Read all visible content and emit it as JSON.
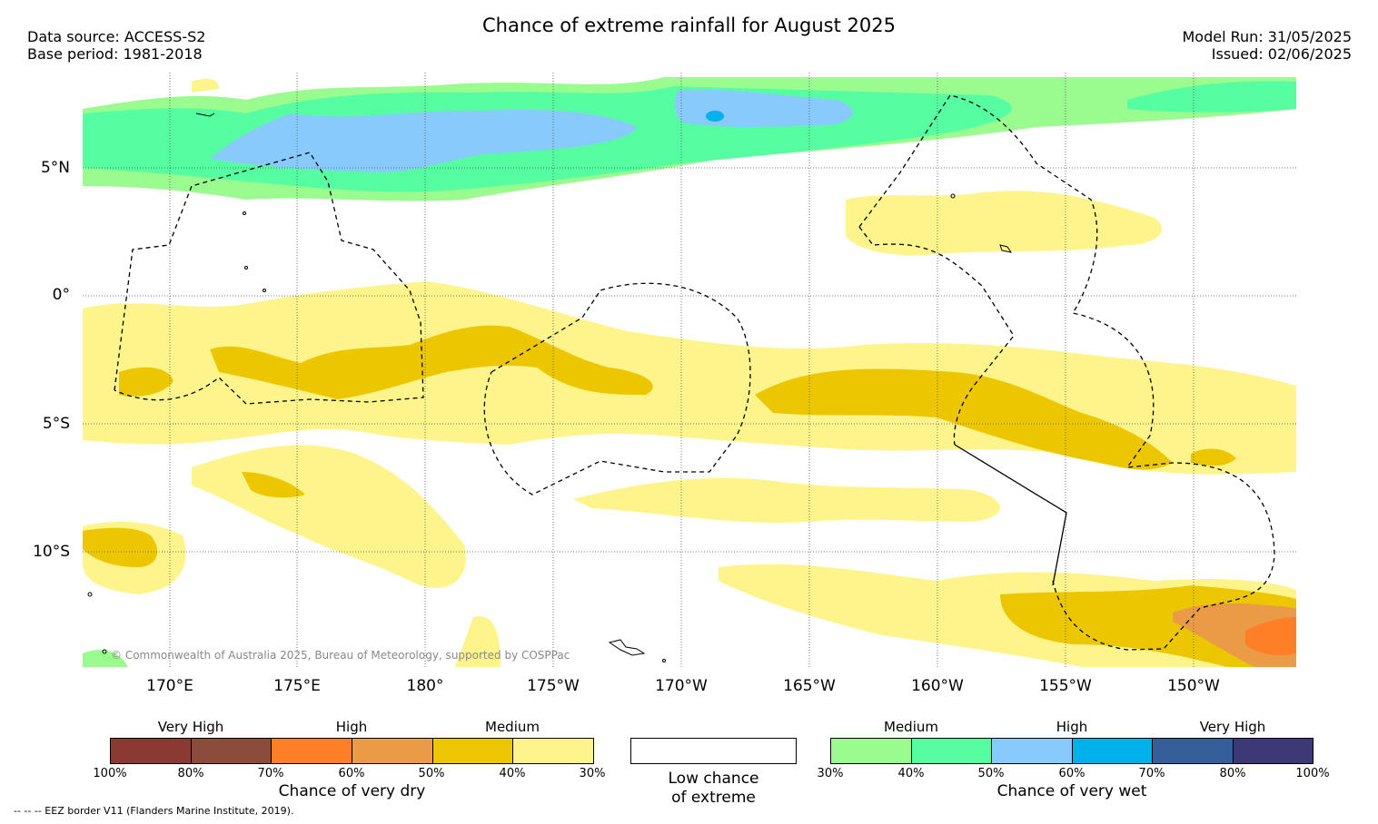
{
  "header": {
    "title": "Chance of extreme rainfall for August 2025",
    "data_source": "Data source: ACCESS-S2",
    "base_period": "Base period: 1981-2018",
    "model_run": "Model Run: 31/05/2025",
    "issued": "Issued: 02/06/2025"
  },
  "map": {
    "lat_labels": [
      "5°N",
      "0°",
      "5°S",
      "10°S"
    ],
    "lon_labels": [
      "170°E",
      "175°E",
      "180°",
      "175°W",
      "170°W",
      "165°W",
      "160°W",
      "155°W",
      "150°W"
    ],
    "copyright": "© Commonwealth of Australia 2025, Bureau of Meteorology, supported by COSPPac"
  },
  "legend_dry": {
    "title": "Chance of very dry",
    "categories": [
      "Very High",
      "High",
      "Medium"
    ],
    "ticks": [
      "100%",
      "80%",
      "70%",
      "60%",
      "50%",
      "40%",
      "30%"
    ],
    "colors": [
      "#8b3a33",
      "#8b4c3c",
      "#ff7f27",
      "#eb9a46",
      "#ecc700",
      "#fef48c"
    ]
  },
  "legend_low": {
    "line1": "Low chance",
    "line2": "of extreme"
  },
  "legend_wet": {
    "title": "Chance of very wet",
    "categories": [
      "Medium",
      "High",
      "Very High"
    ],
    "ticks": [
      "30%",
      "40%",
      "50%",
      "60%",
      "70%",
      "80%",
      "100%"
    ],
    "colors": [
      "#9afb8f",
      "#55fea0",
      "#88cafb",
      "#00b1ec",
      "#365e98",
      "#3d3977"
    ]
  },
  "footer": {
    "eez_note": "--  --  -- EEZ border V11 (Flanders Marine Institute, 2019)."
  }
}
